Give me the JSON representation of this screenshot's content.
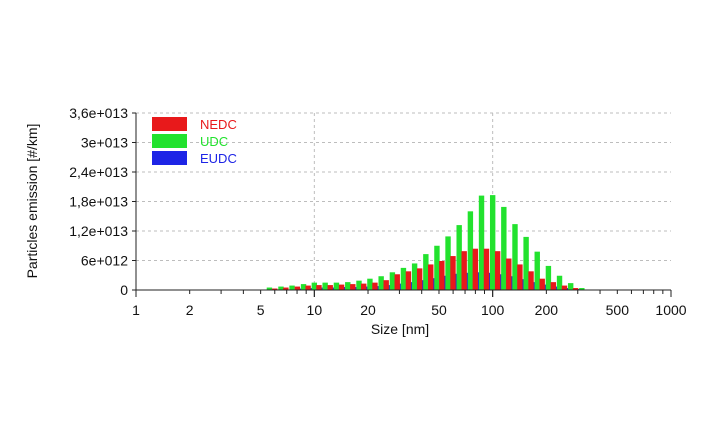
{
  "chart_data": {
    "type": "bar",
    "title": "",
    "xlabel": "Size [nm]",
    "ylabel": "Particles emission [#/km]",
    "x_scale": "log",
    "xlim": [
      1,
      1000
    ],
    "ylim": [
      0,
      36000000000000.0
    ],
    "grid": true,
    "legend_position": "top-left",
    "x_tick_labels": [
      "1",
      "2",
      "5",
      "10",
      "20",
      "50",
      "100",
      "200",
      "500",
      "1000"
    ],
    "x_tick_values": [
      1,
      2,
      5,
      10,
      20,
      50,
      100,
      200,
      500,
      1000
    ],
    "y_tick_labels": [
      "0",
      "6e+012",
      "1,2e+013",
      "1,8e+013",
      "2,4e+013",
      "3e+013",
      "3,6e+013"
    ],
    "y_tick_values": [
      0,
      6000000000000.0,
      12000000000000.0,
      18000000000000.0,
      24000000000000.0,
      30000000000000.0,
      36000000000000.0
    ],
    "x": [
      5.6,
      6.5,
      7.5,
      8.7,
      10,
      11.5,
      13.3,
      15.4,
      17.8,
      20.5,
      23.7,
      27.4,
      31.6,
      36.5,
      42.2,
      48.7,
      56.2,
      64.9,
      75,
      86.6,
      100,
      115.5,
      133.4,
      154,
      177.8,
      205.4,
      237.1,
      273.8,
      316.2,
      365.2
    ],
    "series": [
      {
        "name": "NEDC",
        "color": "#e8191b",
        "values": [
          100000000000.0,
          300000000000.0,
          500000000000.0,
          700000000000.0,
          900000000000.0,
          1000000000000.0,
          1000000000000.0,
          1100000000000.0,
          1200000000000.0,
          1300000000000.0,
          1500000000000.0,
          2000000000000.0,
          3200000000000.0,
          3800000000000.0,
          4400000000000.0,
          5200000000000.0,
          5900000000000.0,
          6900000000000.0,
          7900000000000.0,
          8400000000000.0,
          8400000000000.0,
          7900000000000.0,
          6400000000000.0,
          5200000000000.0,
          3800000000000.0,
          2300000000000.0,
          1600000000000.0,
          900000000000.0,
          400000000000.0,
          100000000000.0
        ]
      },
      {
        "name": "UDC",
        "color": "#22e22e",
        "values": [
          500000000000.0,
          700000000000.0,
          900000000000.0,
          1200000000000.0,
          1500000000000.0,
          1500000000000.0,
          1500000000000.0,
          1600000000000.0,
          1900000000000.0,
          2300000000000.0,
          2800000000000.0,
          3600000000000.0,
          4500000000000.0,
          5400000000000.0,
          7300000000000.0,
          9000000000000.0,
          10900000000000.0,
          13200000000000.0,
          16000000000000.0,
          19200000000000.0,
          19300000000000.0,
          16900000000000.0,
          13400000000000.0,
          10800000000000.0,
          7800000000000.0,
          4900000000000.0,
          2900000000000.0,
          1400000000000.0,
          400000000000.0,
          100000000000.0
        ]
      },
      {
        "name": "EUDC",
        "color": "#1d24e6",
        "values": [
          100000000000.0,
          100000000000.0,
          300000000000.0,
          400000000000.0,
          500000000000.0,
          500000000000.0,
          600000000000.0,
          600000000000.0,
          700000000000.0,
          800000000000.0,
          1000000000000.0,
          1300000000000.0,
          1600000000000.0,
          2000000000000.0,
          2400000000000.0,
          2900000000000.0,
          3300000000000.0,
          3500000000000.0,
          3600000000000.0,
          3500000000000.0,
          3200000000000.0,
          2800000000000.0,
          2200000000000.0,
          1600000000000.0,
          1100000000000.0,
          700000000000.0,
          400000000000.0,
          200000000000.0,
          100000000000.0,
          0.0
        ]
      }
    ]
  }
}
